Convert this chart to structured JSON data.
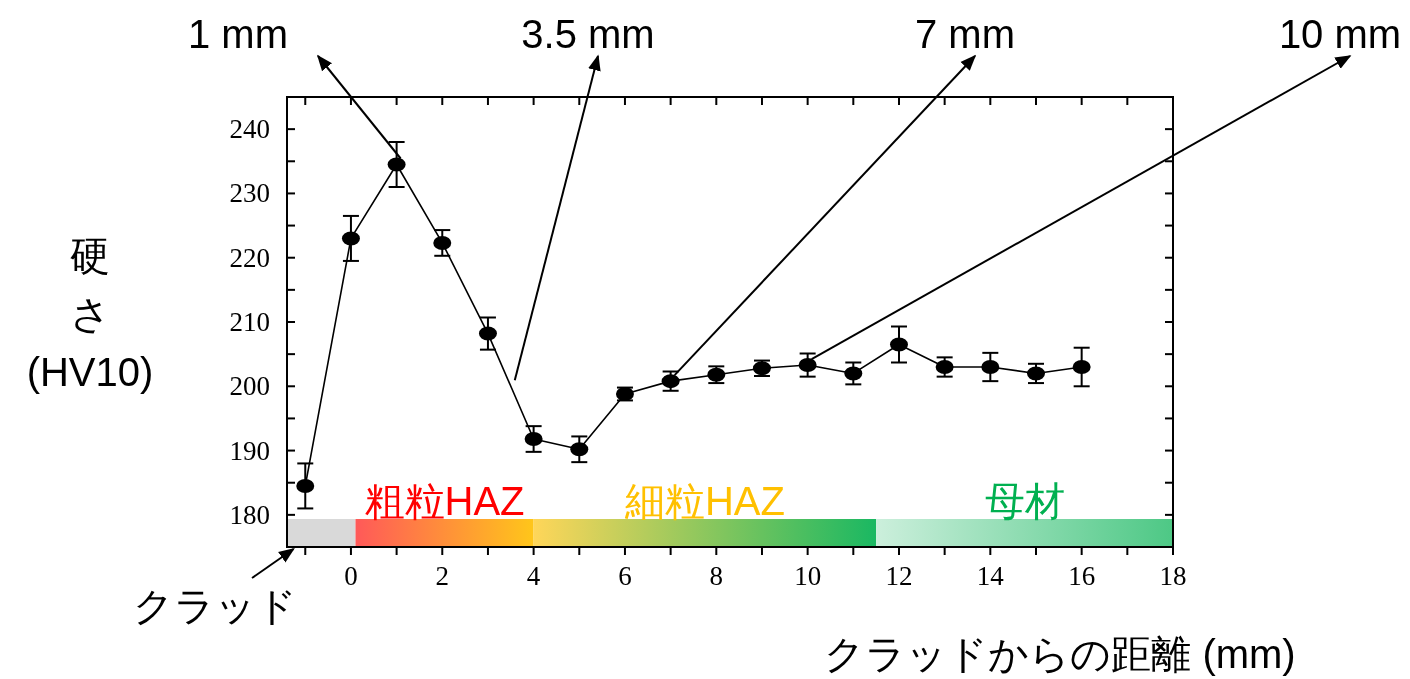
{
  "chart_data": {
    "type": "line",
    "xlabel": "クラッドからの距離 (mm)",
    "ylabel": "硬さ (HV10)",
    "x": [
      -1,
      0,
      1,
      2,
      3,
      4,
      5,
      6,
      7,
      8,
      9,
      10,
      11,
      12,
      13,
      14,
      15,
      16
    ],
    "series": [
      {
        "color": "#000000",
        "values": [
          184.5,
          223,
          234.5,
          222.3,
          208.2,
          191.8,
          190.2,
          198.8,
          200.8,
          201.8,
          202.8,
          203.3,
          202,
          206.5,
          203,
          203,
          202,
          203
        ],
        "errors": [
          3.5,
          3.5,
          3.5,
          2,
          2.5,
          2,
          2,
          1,
          1.5,
          1.3,
          1.2,
          1.8,
          1.7,
          2.8,
          1.5,
          2.2,
          1.5,
          3
        ]
      }
    ],
    "marker": "circle",
    "line_style": "solid",
    "xlim": [
      -1.4,
      18
    ],
    "ylim": [
      175,
      245
    ],
    "xticks": [
      {
        "value": -1,
        "label": null
      },
      0,
      {
        "value": 1,
        "label": null
      },
      2,
      {
        "value": 3,
        "label": null
      },
      4,
      {
        "value": 5,
        "label": null
      },
      6,
      {
        "value": 7,
        "label": null
      },
      8,
      {
        "value": 9,
        "label": null
      },
      10,
      {
        "value": 11,
        "label": null
      },
      12,
      {
        "value": 13,
        "label": null
      },
      14,
      {
        "value": 15,
        "label": null
      },
      16,
      {
        "value": 17,
        "label": null
      },
      18
    ],
    "yticks": [
      180,
      {
        "value": 185,
        "label": null
      },
      190,
      {
        "value": 195,
        "label": null
      },
      200,
      {
        "value": 205,
        "label": null
      },
      210,
      {
        "value": 215,
        "label": null
      },
      220,
      {
        "value": 225,
        "label": null
      },
      230,
      {
        "value": 235,
        "label": null
      },
      240
    ],
    "bands": [
      {
        "axis": "x",
        "from": -1.4,
        "to": 0.1,
        "color": "#d9d9d9"
      },
      {
        "axis": "x",
        "from": 0.1,
        "to": 4,
        "label": "粗粒HAZ",
        "color": "#ff0000"
      },
      {
        "axis": "x",
        "from": 4,
        "to": 11.5,
        "label": "細粒HAZ",
        "color": "#ffc000"
      },
      {
        "axis": "x",
        "from": 11.5,
        "to": 18,
        "label": "母材",
        "color": "#00b050"
      }
    ],
    "annotations": [
      {
        "text": "1 mm",
        "x": 1,
        "y": 234.5
      },
      {
        "text": "3.5 mm",
        "x": 3.5,
        "y": 200
      },
      {
        "text": "7 mm",
        "x": 7,
        "y": 200.8
      },
      {
        "text": "10 mm",
        "x": 10,
        "y": 203.3
      },
      {
        "text": "クラッド",
        "x": -1.3,
        "y": 175
      }
    ]
  }
}
